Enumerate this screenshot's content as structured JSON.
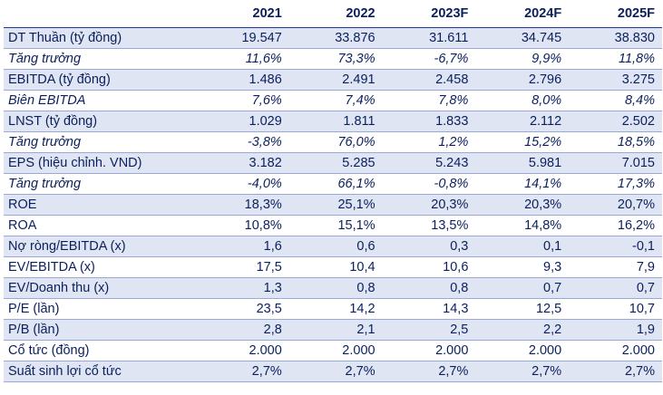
{
  "header": {
    "label": "",
    "years": [
      "2021",
      "2022",
      "2023F",
      "2024F",
      "2025F"
    ]
  },
  "rows": [
    {
      "label": "DT Thuần (tỷ đồng)",
      "values": [
        "19.547",
        "33.876",
        "31.611",
        "34.745",
        "38.830"
      ],
      "italic": false,
      "shaded": true
    },
    {
      "label": "Tăng trưởng",
      "values": [
        "11,6%",
        "73,3%",
        "-6,7%",
        "9,9%",
        "11,8%"
      ],
      "italic": true,
      "shaded": false
    },
    {
      "label": "EBITDA (tỷ đồng)",
      "values": [
        "1.486",
        "2.491",
        "2.458",
        "2.796",
        "3.275"
      ],
      "italic": false,
      "shaded": true
    },
    {
      "label": "Biên EBITDA",
      "values": [
        "7,6%",
        "7,4%",
        "7,8%",
        "8,0%",
        "8,4%"
      ],
      "italic": true,
      "shaded": false
    },
    {
      "label": "LNST (tỷ đồng)",
      "values": [
        "1.029",
        "1.811",
        "1.833",
        "2.112",
        "2.502"
      ],
      "italic": false,
      "shaded": true
    },
    {
      "label": "Tăng trưởng",
      "values": [
        "-3,8%",
        "76,0%",
        "1,2%",
        "15,2%",
        "18,5%"
      ],
      "italic": true,
      "shaded": false
    },
    {
      "label": "EPS (hiệu chỉnh. VND)",
      "values": [
        "3.182",
        "5.285",
        "5.243",
        "5.981",
        "7.015"
      ],
      "italic": false,
      "shaded": true
    },
    {
      "label": "Tăng trưởng",
      "values": [
        "-4,0%",
        "66,1%",
        "-0,8%",
        "14,1%",
        "17,3%"
      ],
      "italic": true,
      "shaded": false
    },
    {
      "label": "ROE",
      "values": [
        "18,3%",
        "25,1%",
        "20,3%",
        "20,3%",
        "20,7%"
      ],
      "italic": false,
      "shaded": true
    },
    {
      "label": "ROA",
      "values": [
        "10,8%",
        "15,1%",
        "13,5%",
        "14,8%",
        "16,2%"
      ],
      "italic": false,
      "shaded": false
    },
    {
      "label": "Nợ ròng/EBITDA (x)",
      "values": [
        "1,6",
        "0,6",
        "0,3",
        "0,1",
        "-0,1"
      ],
      "italic": false,
      "shaded": true
    },
    {
      "label": "EV/EBITDA (x)",
      "values": [
        "17,5",
        "10,4",
        "10,6",
        "9,3",
        "7,9"
      ],
      "italic": false,
      "shaded": false
    },
    {
      "label": "EV/Doanh thu (x)",
      "values": [
        "1,3",
        "0,8",
        "0,8",
        "0,7",
        "0,7"
      ],
      "italic": false,
      "shaded": true
    },
    {
      "label": "P/E (lần)",
      "values": [
        "23,5",
        "14,2",
        "14,3",
        "12,5",
        "10,7"
      ],
      "italic": false,
      "shaded": false
    },
    {
      "label": "P/B (lần)",
      "values": [
        "2,8",
        "2,1",
        "2,5",
        "2,2",
        "1,9"
      ],
      "italic": false,
      "shaded": true
    },
    {
      "label": "Cổ tức (đồng)",
      "values": [
        "2.000",
        "2.000",
        "2.000",
        "2.000",
        "2.000"
      ],
      "italic": false,
      "shaded": false
    },
    {
      "label": "Suất sinh lợi cổ tức",
      "values": [
        "2,7%",
        "2,7%",
        "2,7%",
        "2,7%",
        "2,7%"
      ],
      "italic": false,
      "shaded": true
    }
  ],
  "colors": {
    "text": "#0b1f5c",
    "shade": "#dfe5f3",
    "rule": "#9aa9d6"
  }
}
